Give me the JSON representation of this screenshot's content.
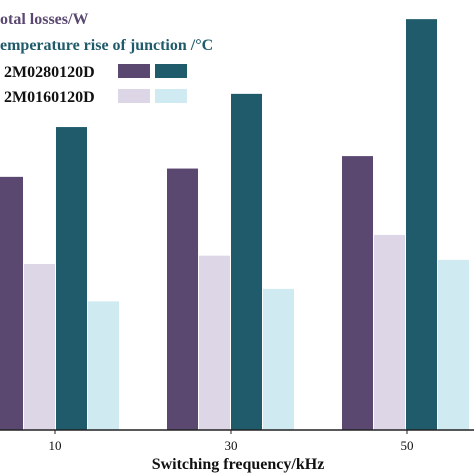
{
  "chart_data": {
    "type": "bar",
    "categories": [
      "10",
      "30",
      "50"
    ],
    "xlabel": "Switching frequency/kHz",
    "ylim": [
      0,
      100
    ],
    "legend_titles": [
      {
        "text": "otal losses/W",
        "color": "#5A4870"
      },
      {
        "text": "emperature rise of junction /°C",
        "color": "#1F5B6B"
      }
    ],
    "legend_rows": [
      {
        "label": "2M0280120D",
        "loss_color": "#5A4870",
        "temp_color": "#1F5B6B"
      },
      {
        "label": "2M0160120D",
        "loss_color": "#DDD6E6",
        "temp_color": "#CFEAF0"
      }
    ],
    "series": [
      {
        "values": [
          61,
          63,
          66
        ],
        "color": "#5A4870"
      },
      {
        "values": [
          40,
          42,
          47
        ],
        "color": "#DDD6E6"
      },
      {
        "values": [
          73,
          81,
          99
        ],
        "color": "#1F5B6B"
      },
      {
        "values": [
          31,
          34,
          41
        ],
        "color": "#CFEAF0"
      }
    ]
  }
}
